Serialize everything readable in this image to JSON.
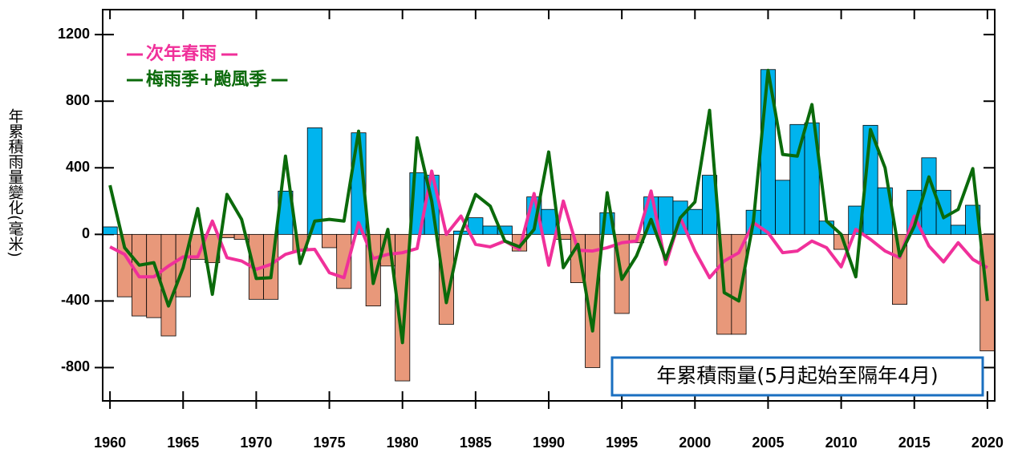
{
  "chart_data": {
    "type": "combo",
    "ylabel": "年累積雨量變化(毫米)",
    "x": [
      1960,
      1961,
      1962,
      1963,
      1964,
      1965,
      1966,
      1967,
      1968,
      1969,
      1970,
      1971,
      1972,
      1973,
      1974,
      1975,
      1976,
      1977,
      1978,
      1979,
      1980,
      1981,
      1982,
      1983,
      1984,
      1985,
      1986,
      1987,
      1988,
      1989,
      1990,
      1991,
      1992,
      1993,
      1994,
      1995,
      1996,
      1997,
      1998,
      1999,
      2000,
      2001,
      2002,
      2003,
      2004,
      2005,
      2006,
      2007,
      2008,
      2009,
      2010,
      2011,
      2012,
      2013,
      2014,
      2015,
      2016,
      2017,
      2018,
      2019,
      2020
    ],
    "series": [
      {
        "name": "年累積雨量(5月起始至隔年4月)",
        "type": "bar",
        "color": "#00b4ee",
        "negative_color": "#e8987a",
        "values": [
          45,
          -375,
          -490,
          -500,
          -610,
          -375,
          -150,
          -170,
          -20,
          -30,
          -390,
          -390,
          260,
          -100,
          640,
          -80,
          -325,
          610,
          -430,
          -190,
          -880,
          370,
          355,
          -540,
          20,
          100,
          50,
          50,
          -100,
          225,
          150,
          -30,
          -290,
          -800,
          130,
          -475,
          -50,
          225,
          225,
          200,
          150,
          355,
          -600,
          -600,
          145,
          990,
          325,
          660,
          670,
          80,
          -90,
          170,
          655,
          280,
          -420,
          265,
          460,
          265,
          55,
          175,
          -700
        ]
      },
      {
        "name": "次年春雨",
        "type": "line",
        "color": "#f0309a",
        "values": [
          -75,
          -120,
          -255,
          -255,
          -190,
          -135,
          -135,
          80,
          -140,
          -160,
          -210,
          -180,
          -120,
          -95,
          -90,
          -230,
          -260,
          70,
          -145,
          -120,
          -110,
          -85,
          380,
          0,
          110,
          -60,
          -75,
          -40,
          -90,
          245,
          -185,
          200,
          -95,
          -100,
          -80,
          -50,
          -40,
          260,
          -180,
          100,
          -100,
          -260,
          -160,
          -110,
          70,
          10,
          -110,
          -100,
          -40,
          -80,
          -195,
          30,
          -30,
          -100,
          -140,
          110,
          -70,
          -165,
          -50,
          -150,
          -200
        ]
      },
      {
        "name": "梅雨季+颱風季",
        "type": "line",
        "color": "#0b6a0b",
        "values": [
          295,
          -80,
          -185,
          -170,
          -430,
          -200,
          155,
          -360,
          240,
          90,
          -265,
          -260,
          470,
          -175,
          80,
          90,
          80,
          620,
          -295,
          30,
          -650,
          580,
          200,
          -410,
          5,
          240,
          170,
          -40,
          -75,
          30,
          495,
          -200,
          -60,
          -580,
          250,
          -270,
          -130,
          90,
          -150,
          100,
          195,
          745,
          -350,
          -400,
          80,
          985,
          480,
          470,
          780,
          80,
          0,
          -255,
          630,
          400,
          -130,
          50,
          345,
          100,
          150,
          395,
          -400
        ]
      }
    ],
    "xlim": [
      1959.5,
      2020.5
    ],
    "xticks": [
      1960,
      1965,
      1970,
      1975,
      1980,
      1985,
      1990,
      1995,
      2000,
      2005,
      2010,
      2015,
      2020
    ],
    "ylim": [
      -1000,
      1350
    ],
    "yticks": [
      -800,
      -400,
      0,
      400,
      800,
      1200
    ],
    "legend": "upper-left",
    "bar_legend": "lower-right"
  }
}
